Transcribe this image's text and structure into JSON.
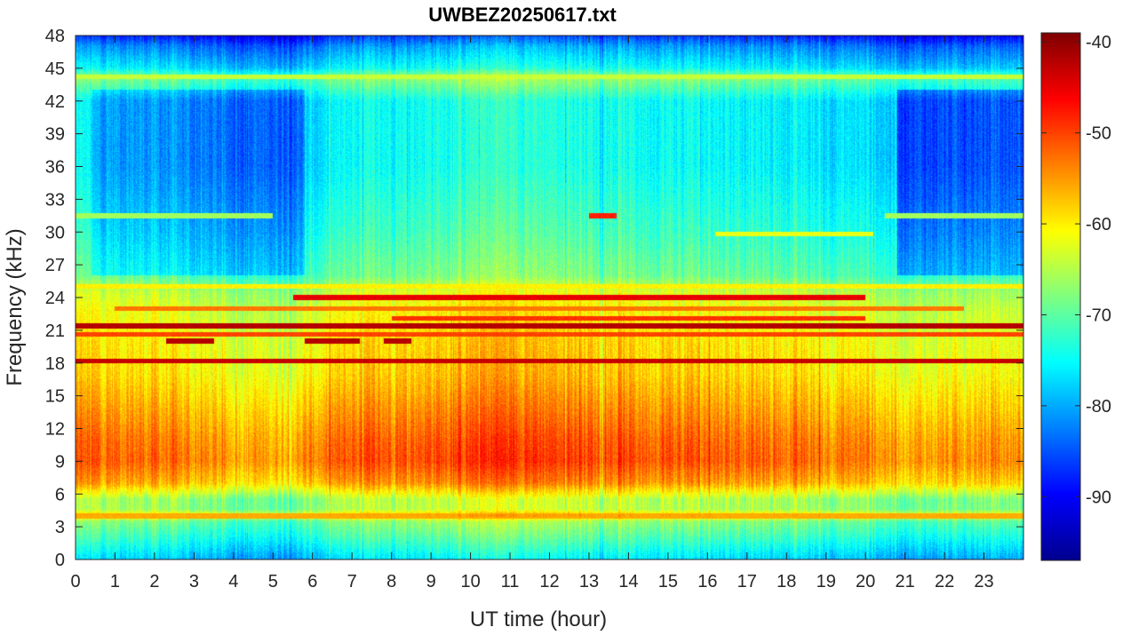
{
  "chart_data": {
    "type": "heatmap",
    "title": "UWBEZ20250617.txt",
    "xlabel": "UT time (hour)",
    "ylabel": "Frequency (kHz)",
    "xlim": [
      0,
      24
    ],
    "ylim": [
      0,
      48
    ],
    "x_ticks": [
      0,
      1,
      2,
      3,
      4,
      5,
      6,
      7,
      8,
      9,
      10,
      11,
      12,
      13,
      14,
      15,
      16,
      17,
      18,
      19,
      20,
      21,
      22,
      23
    ],
    "y_ticks": [
      0,
      3,
      6,
      9,
      12,
      15,
      18,
      21,
      24,
      27,
      30,
      33,
      36,
      39,
      42,
      45,
      48
    ],
    "colorbar": {
      "colormap": "jet",
      "clim": [
        -97,
        -39
      ],
      "ticks": [
        -90,
        -80,
        -70,
        -60,
        -50,
        -40
      ]
    },
    "colormap_stops": [
      "#00008f",
      "#0000ff",
      "#00ffff",
      "#ffff00",
      "#ff0000",
      "#800000"
    ],
    "spectral_profile": [
      {
        "freq": 0,
        "level": -78
      },
      {
        "freq": 2,
        "level": -72
      },
      {
        "freq": 3.5,
        "level": -68
      },
      {
        "freq": 4,
        "level": -58
      },
      {
        "freq": 4.6,
        "level": -66
      },
      {
        "freq": 5.5,
        "level": -66
      },
      {
        "freq": 7,
        "level": -56
      },
      {
        "freq": 9,
        "level": -52
      },
      {
        "freq": 11,
        "level": -53
      },
      {
        "freq": 14,
        "level": -56
      },
      {
        "freq": 17,
        "level": -59
      },
      {
        "freq": 20,
        "level": -60
      },
      {
        "freq": 23,
        "level": -62
      },
      {
        "freq": 24.5,
        "level": -64
      },
      {
        "freq": 26,
        "level": -70
      },
      {
        "freq": 30,
        "level": -73
      },
      {
        "freq": 36,
        "level": -76
      },
      {
        "freq": 42,
        "level": -76
      },
      {
        "freq": 44.2,
        "level": -68
      },
      {
        "freq": 45,
        "level": -76
      },
      {
        "freq": 47,
        "level": -82
      },
      {
        "freq": 48,
        "level": -88
      }
    ],
    "day_cycle": [
      {
        "hour": 0,
        "offset": 1
      },
      {
        "hour": 2,
        "offset": 0
      },
      {
        "hour": 4,
        "offset": -3
      },
      {
        "hour": 5.5,
        "offset": -3
      },
      {
        "hour": 7,
        "offset": 1
      },
      {
        "hour": 9,
        "offset": 2
      },
      {
        "hour": 11,
        "offset": 4
      },
      {
        "hour": 13,
        "offset": 2
      },
      {
        "hour": 16,
        "offset": 1
      },
      {
        "hour": 18,
        "offset": 0
      },
      {
        "hour": 20,
        "offset": -1
      },
      {
        "hour": 21,
        "offset": -3
      },
      {
        "hour": 24,
        "offset": -2
      }
    ],
    "quiet_high_band": [
      {
        "start_hour": 0.4,
        "end_hour": 5.8,
        "offset": -5
      },
      {
        "start_hour": 20.8,
        "end_hour": 24,
        "offset": -7
      }
    ],
    "narrowband_lines": [
      {
        "freq": 21.4,
        "start_hour": 0,
        "end_hour": 24,
        "level": -42
      },
      {
        "freq": 18.2,
        "start_hour": 0,
        "end_hour": 24,
        "level": -43
      },
      {
        "freq": 24.0,
        "start_hour": 5.5,
        "end_hour": 20,
        "level": -45
      },
      {
        "freq": 22.1,
        "start_hour": 8,
        "end_hour": 20,
        "level": -49
      },
      {
        "freq": 20.0,
        "start_hour": 2.3,
        "end_hour": 3.5,
        "level": -42
      },
      {
        "freq": 20.0,
        "start_hour": 5.8,
        "end_hour": 7.2,
        "level": -42
      },
      {
        "freq": 20.0,
        "start_hour": 7.8,
        "end_hour": 8.5,
        "level": -42
      },
      {
        "freq": 20.6,
        "start_hour": 0,
        "end_hour": 24,
        "level": -50
      },
      {
        "freq": 23.0,
        "start_hour": 1,
        "end_hour": 22.5,
        "level": -53
      },
      {
        "freq": 25.0,
        "start_hour": 0,
        "end_hour": 24,
        "level": -60
      },
      {
        "freq": 31.5,
        "start_hour": 13,
        "end_hour": 13.7,
        "level": -48
      },
      {
        "freq": 29.8,
        "start_hour": 16.2,
        "end_hour": 20.2,
        "level": -62
      },
      {
        "freq": 44.2,
        "start_hour": 0,
        "end_hour": 24,
        "level": -64
      },
      {
        "freq": 4.0,
        "start_hour": 0,
        "end_hour": 24,
        "level": -56
      },
      {
        "freq": 31.5,
        "start_hour": 0,
        "end_hour": 5,
        "level": -66
      },
      {
        "freq": 31.5,
        "start_hour": 20.5,
        "end_hour": 24,
        "level": -66
      }
    ]
  }
}
